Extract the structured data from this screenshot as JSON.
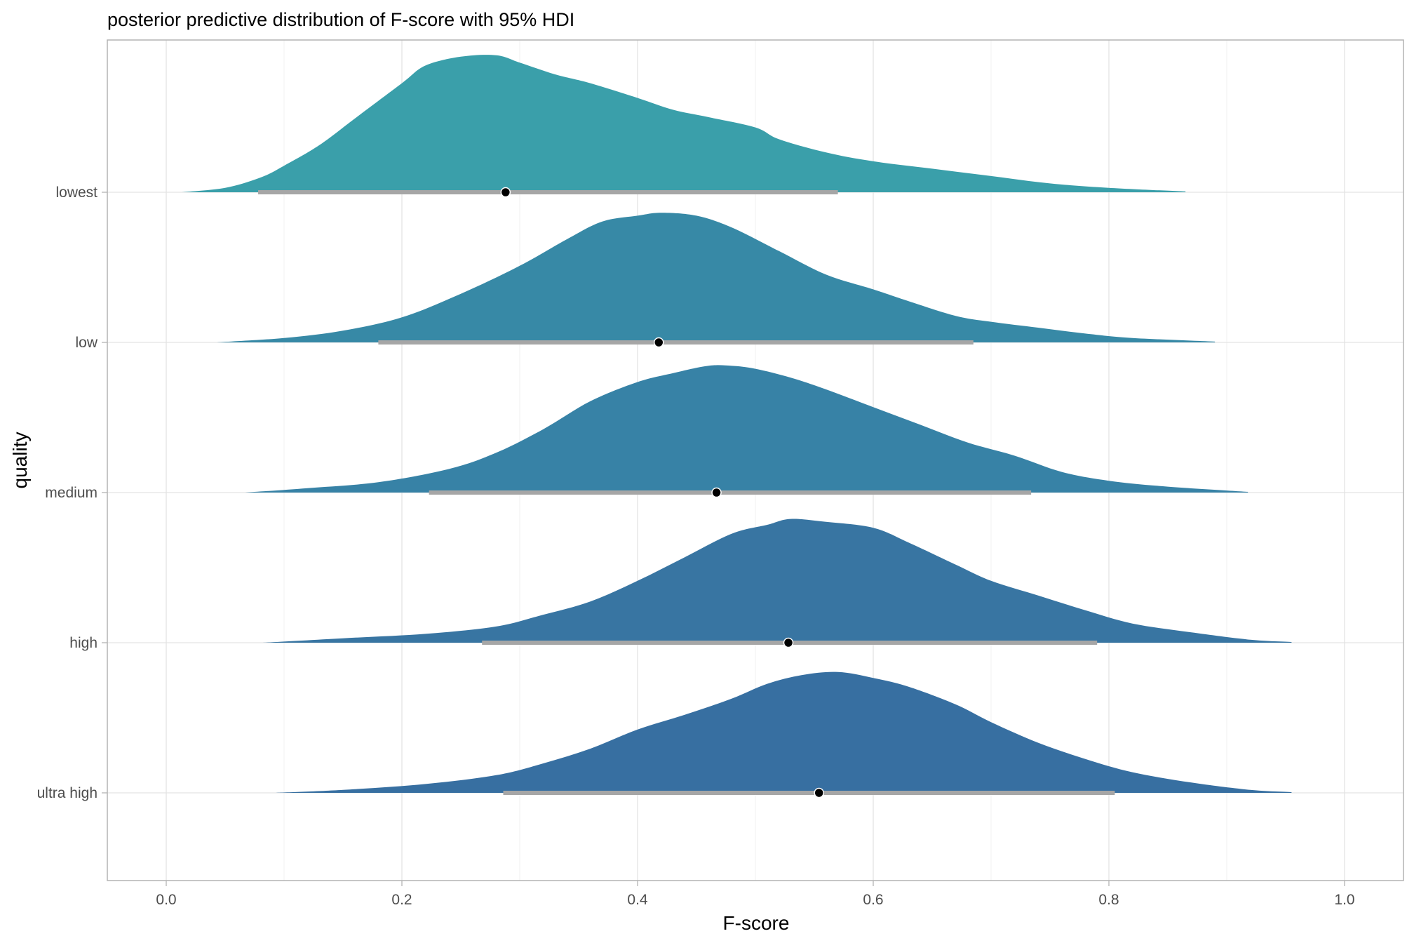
{
  "chart_data": {
    "type": "density-ridge",
    "title": "posterior predictive distribution of F-score with 95% HDI",
    "xlabel": "F-score",
    "ylabel": "quality",
    "xlim": [
      -0.05,
      1.05
    ],
    "x_ticks": [
      0.0,
      0.2,
      0.4,
      0.6,
      0.8,
      1.0
    ],
    "x_tick_labels": [
      "0.0",
      "0.2",
      "0.4",
      "0.6",
      "0.8",
      "1.0"
    ],
    "grid": true,
    "legend": "none",
    "series": [
      {
        "name": "lowest",
        "color": "#3A9FAA",
        "range": [
          0.013,
          0.865
        ],
        "point": 0.288,
        "hdi": [
          0.078,
          0.57
        ],
        "density": [
          [
            0.013,
            0
          ],
          [
            0.05,
            0.03
          ],
          [
            0.08,
            0.1
          ],
          [
            0.1,
            0.18
          ],
          [
            0.13,
            0.32
          ],
          [
            0.16,
            0.5
          ],
          [
            0.2,
            0.74
          ],
          [
            0.22,
            0.86
          ],
          [
            0.25,
            0.92
          ],
          [
            0.28,
            0.93
          ],
          [
            0.3,
            0.88
          ],
          [
            0.33,
            0.8
          ],
          [
            0.36,
            0.74
          ],
          [
            0.4,
            0.64
          ],
          [
            0.43,
            0.56
          ],
          [
            0.46,
            0.51
          ],
          [
            0.5,
            0.44
          ],
          [
            0.52,
            0.36
          ],
          [
            0.56,
            0.27
          ],
          [
            0.6,
            0.21
          ],
          [
            0.65,
            0.16
          ],
          [
            0.7,
            0.11
          ],
          [
            0.75,
            0.06
          ],
          [
            0.8,
            0.03
          ],
          [
            0.865,
            0.005
          ]
        ]
      },
      {
        "name": "low",
        "color": "#3789A6",
        "range": [
          0.043,
          0.89
        ],
        "point": 0.418,
        "hdi": [
          0.18,
          0.685
        ],
        "density": [
          [
            0.043,
            0
          ],
          [
            0.1,
            0.03
          ],
          [
            0.15,
            0.08
          ],
          [
            0.2,
            0.17
          ],
          [
            0.25,
            0.33
          ],
          [
            0.3,
            0.52
          ],
          [
            0.34,
            0.7
          ],
          [
            0.37,
            0.82
          ],
          [
            0.4,
            0.86
          ],
          [
            0.42,
            0.88
          ],
          [
            0.45,
            0.86
          ],
          [
            0.48,
            0.78
          ],
          [
            0.52,
            0.62
          ],
          [
            0.56,
            0.46
          ],
          [
            0.6,
            0.36
          ],
          [
            0.63,
            0.28
          ],
          [
            0.67,
            0.18
          ],
          [
            0.7,
            0.14
          ],
          [
            0.74,
            0.1
          ],
          [
            0.78,
            0.06
          ],
          [
            0.82,
            0.03
          ],
          [
            0.89,
            0.005
          ]
        ]
      },
      {
        "name": "medium",
        "color": "#3782A6",
        "range": [
          0.067,
          0.918
        ],
        "point": 0.467,
        "hdi": [
          0.223,
          0.734
        ],
        "density": [
          [
            0.067,
            0
          ],
          [
            0.12,
            0.03
          ],
          [
            0.18,
            0.07
          ],
          [
            0.24,
            0.16
          ],
          [
            0.28,
            0.27
          ],
          [
            0.32,
            0.43
          ],
          [
            0.36,
            0.62
          ],
          [
            0.4,
            0.75
          ],
          [
            0.43,
            0.81
          ],
          [
            0.46,
            0.86
          ],
          [
            0.48,
            0.86
          ],
          [
            0.5,
            0.84
          ],
          [
            0.53,
            0.78
          ],
          [
            0.56,
            0.7
          ],
          [
            0.6,
            0.58
          ],
          [
            0.64,
            0.46
          ],
          [
            0.68,
            0.34
          ],
          [
            0.72,
            0.25
          ],
          [
            0.76,
            0.14
          ],
          [
            0.8,
            0.08
          ],
          [
            0.85,
            0.04
          ],
          [
            0.918,
            0.005
          ]
        ]
      },
      {
        "name": "high",
        "color": "#3875A2",
        "range": [
          0.082,
          0.955
        ],
        "point": 0.528,
        "hdi": [
          0.268,
          0.79
        ],
        "density": [
          [
            0.082,
            0
          ],
          [
            0.15,
            0.03
          ],
          [
            0.22,
            0.06
          ],
          [
            0.28,
            0.11
          ],
          [
            0.32,
            0.19
          ],
          [
            0.36,
            0.28
          ],
          [
            0.4,
            0.42
          ],
          [
            0.44,
            0.58
          ],
          [
            0.48,
            0.74
          ],
          [
            0.51,
            0.8
          ],
          [
            0.53,
            0.84
          ],
          [
            0.56,
            0.82
          ],
          [
            0.6,
            0.78
          ],
          [
            0.63,
            0.68
          ],
          [
            0.67,
            0.53
          ],
          [
            0.7,
            0.42
          ],
          [
            0.74,
            0.32
          ],
          [
            0.78,
            0.22
          ],
          [
            0.82,
            0.13
          ],
          [
            0.87,
            0.07
          ],
          [
            0.92,
            0.02
          ],
          [
            0.955,
            0.005
          ]
        ]
      },
      {
        "name": "ultra high",
        "color": "#376FA1",
        "range": [
          0.093,
          0.955
        ],
        "point": 0.554,
        "hdi": [
          0.286,
          0.805
        ],
        "density": [
          [
            0.093,
            0
          ],
          [
            0.15,
            0.02
          ],
          [
            0.22,
            0.06
          ],
          [
            0.28,
            0.12
          ],
          [
            0.32,
            0.2
          ],
          [
            0.36,
            0.3
          ],
          [
            0.4,
            0.43
          ],
          [
            0.44,
            0.53
          ],
          [
            0.48,
            0.64
          ],
          [
            0.51,
            0.74
          ],
          [
            0.54,
            0.8
          ],
          [
            0.57,
            0.82
          ],
          [
            0.6,
            0.78
          ],
          [
            0.63,
            0.72
          ],
          [
            0.67,
            0.6
          ],
          [
            0.7,
            0.48
          ],
          [
            0.74,
            0.34
          ],
          [
            0.78,
            0.23
          ],
          [
            0.82,
            0.14
          ],
          [
            0.87,
            0.07
          ],
          [
            0.92,
            0.02
          ],
          [
            0.955,
            0.005
          ]
        ]
      }
    ]
  }
}
